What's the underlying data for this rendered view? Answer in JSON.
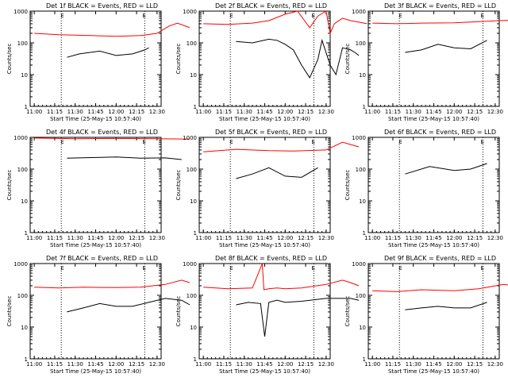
{
  "chart_data": [
    {
      "type": "line",
      "title": "Det 1f BLACK = Events, RED = LLD",
      "xlabel": "Start Time (25-May-15 10:57:40)",
      "ylabel": "Counts/sec",
      "yscale": "log",
      "ylim": [
        1,
        1000
      ],
      "x_ticks": [
        "11:00",
        "11:15",
        "11:30",
        "11:45",
        "12:00",
        "12:15",
        "12:30"
      ],
      "y_ticks": [
        "1",
        "10",
        "100",
        "1000"
      ],
      "markers": [
        "E",
        "E"
      ],
      "series": [
        {
          "color": "#000000",
          "x": [
            11.4,
            11.55,
            11.8,
            12.0,
            12.2,
            12.35,
            12.4
          ],
          "values": [
            35,
            45,
            55,
            40,
            45,
            60,
            70
          ]
        },
        {
          "color": "#ff0000",
          "x": [
            11.0,
            11.3,
            11.7,
            12.0,
            12.3,
            12.5,
            12.65,
            12.75,
            12.9
          ],
          "values": [
            200,
            180,
            170,
            160,
            170,
            200,
            340,
            420,
            300
          ]
        }
      ]
    },
    {
      "type": "line",
      "title": "Det 2f BLACK = Events, RED = LLD",
      "xlabel": "Start Time (25-May-15 10:57:40)",
      "ylabel": "Counts/sec",
      "yscale": "log",
      "ylim": [
        1,
        1000
      ],
      "x_ticks": [
        "11:00",
        "11:15",
        "11:30",
        "11:45",
        "12:00",
        "12:15",
        "12:30"
      ],
      "y_ticks": [
        "1",
        "10",
        "100",
        "1000"
      ],
      "markers": [
        "E",
        "E"
      ],
      "series": [
        {
          "color": "#000000",
          "x": [
            11.4,
            11.6,
            11.8,
            11.9,
            12.0,
            12.1,
            12.2,
            12.3,
            12.4,
            12.45,
            12.55,
            12.62,
            12.7,
            12.8,
            12.85,
            12.9
          ],
          "values": [
            110,
            100,
            130,
            120,
            90,
            60,
            20,
            8,
            30,
            120,
            20,
            10,
            70,
            60,
            50,
            40
          ]
        },
        {
          "color": "#ff0000",
          "x": [
            11.0,
            11.3,
            11.6,
            11.8,
            12.0,
            12.15,
            12.3,
            12.4,
            12.5,
            12.55,
            12.6,
            12.7,
            12.8,
            12.9,
            13.0
          ],
          "values": [
            400,
            380,
            420,
            500,
            800,
            1000,
            300,
            700,
            1000,
            200,
            400,
            600,
            500,
            450,
            400
          ]
        }
      ]
    },
    {
      "type": "line",
      "title": "Det 3f BLACK = Events, RED = LLD",
      "xlabel": "Start Time (25-May-15 10:57:40)",
      "ylabel": "Counts/sec",
      "yscale": "log",
      "ylim": [
        1,
        1000
      ],
      "x_ticks": [
        "11:00",
        "11:15",
        "11:30",
        "11:45",
        "12:00",
        "12:15",
        "12:30"
      ],
      "y_ticks": [
        "1",
        "10",
        "100",
        "1000"
      ],
      "markers": [
        "E",
        "E"
      ],
      "series": [
        {
          "color": "#000000",
          "x": [
            11.4,
            11.6,
            11.8,
            12.0,
            12.2,
            12.4
          ],
          "values": [
            50,
            60,
            90,
            70,
            65,
            120
          ]
        },
        {
          "color": "#ff0000",
          "x": [
            11.0,
            11.3,
            11.6,
            12.0,
            12.4,
            12.7,
            12.9
          ],
          "values": [
            420,
            400,
            420,
            430,
            480,
            520,
            400
          ]
        }
      ]
    },
    {
      "type": "line",
      "title": "Det 4f BLACK = Events, RED = LLD",
      "xlabel": "Start Time (25-May-15 10:57:40)",
      "ylabel": "Counts/sec",
      "yscale": "log",
      "ylim": [
        1,
        1000
      ],
      "x_ticks": [
        "11:00",
        "11:15",
        "11:30",
        "11:45",
        "12:00",
        "12:15",
        "12:30"
      ],
      "y_ticks": [
        "1",
        "10",
        "100",
        "1000"
      ],
      "markers": [
        "E",
        "E"
      ],
      "series": [
        {
          "color": "#000000",
          "x": [
            11.4,
            11.7,
            12.0,
            12.3,
            12.6,
            12.8
          ],
          "values": [
            220,
            230,
            240,
            220,
            225,
            200
          ]
        },
        {
          "color": "#ff0000",
          "x": [
            11.0,
            11.5,
            12.0,
            12.5,
            12.9
          ],
          "values": [
            950,
            900,
            920,
            900,
            880
          ]
        }
      ]
    },
    {
      "type": "line",
      "title": "Det 5f BLACK = Events, RED = LLD",
      "xlabel": "Start Time (25-May-15 10:57:40)",
      "ylabel": "Counts/sec",
      "yscale": "log",
      "ylim": [
        1,
        1000
      ],
      "x_ticks": [
        "11:00",
        "11:15",
        "11:30",
        "11:45",
        "12:00",
        "12:15",
        "12:30"
      ],
      "y_ticks": [
        "1",
        "10",
        "100",
        "1000"
      ],
      "markers": [
        "E",
        "E"
      ],
      "series": [
        {
          "color": "#000000",
          "x": [
            11.4,
            11.6,
            11.8,
            12.0,
            12.2,
            12.4
          ],
          "values": [
            50,
            70,
            110,
            60,
            55,
            110
          ]
        },
        {
          "color": "#ff0000",
          "x": [
            11.0,
            11.4,
            11.8,
            12.1,
            12.5,
            12.7,
            12.9
          ],
          "values": [
            350,
            420,
            380,
            370,
            400,
            700,
            500
          ]
        }
      ]
    },
    {
      "type": "line",
      "title": "Det 6f BLACK = Events, RED = LLD",
      "xlabel": "Start Time (25-May-15 10:57:40)",
      "ylabel": "Counts/sec",
      "yscale": "log",
      "ylim": [
        1,
        1000
      ],
      "x_ticks": [
        "11:00",
        "11:15",
        "11:30",
        "11:45",
        "12:00",
        "12:15",
        "12:30"
      ],
      "y_ticks": [
        "1",
        "10",
        "100",
        "1000"
      ],
      "markers": [
        "E",
        "E"
      ],
      "series": [
        {
          "color": "#000000",
          "x": [
            11.4,
            11.7,
            12.0,
            12.2,
            12.4
          ],
          "values": [
            70,
            120,
            90,
            100,
            150
          ]
        }
      ]
    },
    {
      "type": "line",
      "title": "Det 7f BLACK = Events, RED = LLD",
      "xlabel": "Start Time (25-May-15 10:57:40)",
      "ylabel": "Counts/sec",
      "yscale": "log",
      "ylim": [
        1,
        1000
      ],
      "x_ticks": [
        "11:00",
        "11:15",
        "11:30",
        "11:45",
        "12:00",
        "12:15",
        "12:30"
      ],
      "y_ticks": [
        "1",
        "10",
        "100",
        "1000"
      ],
      "markers": [
        "E",
        "E"
      ],
      "series": [
        {
          "color": "#000000",
          "x": [
            11.4,
            11.6,
            11.8,
            12.0,
            12.2,
            12.4,
            12.6,
            12.8,
            12.9
          ],
          "values": [
            30,
            40,
            55,
            45,
            45,
            60,
            80,
            70,
            50
          ]
        },
        {
          "color": "#ff0000",
          "x": [
            11.0,
            11.3,
            11.6,
            12.0,
            12.3,
            12.6,
            12.8,
            12.9
          ],
          "values": [
            180,
            170,
            180,
            175,
            180,
            220,
            300,
            250
          ]
        }
      ]
    },
    {
      "type": "line",
      "title": "Det 8f BLACK = Events, RED = LLD",
      "xlabel": "Start Time (25-May-15 10:57:40)",
      "ylabel": "Counts/sec",
      "yscale": "log",
      "ylim": [
        1,
        1000
      ],
      "x_ticks": [
        "11:00",
        "11:15",
        "11:30",
        "11:45",
        "12:00",
        "12:15",
        "12:30"
      ],
      "y_ticks": [
        "1",
        "10",
        "100",
        "1000"
      ],
      "markers": [
        "E",
        "E"
      ],
      "series": [
        {
          "color": "#000000",
          "x": [
            11.4,
            11.55,
            11.7,
            11.75,
            11.8,
            11.9,
            12.0,
            12.2,
            12.5,
            12.8,
            12.9
          ],
          "values": [
            50,
            60,
            55,
            5,
            60,
            70,
            60,
            65,
            80,
            80,
            70
          ]
        },
        {
          "color": "#ff0000",
          "x": [
            11.0,
            11.3,
            11.6,
            11.72,
            11.74,
            11.8,
            11.9,
            12.0,
            12.2,
            12.5,
            12.7,
            12.8,
            12.9
          ],
          "values": [
            180,
            160,
            170,
            1000,
            150,
            160,
            170,
            160,
            170,
            220,
            300,
            250,
            200
          ]
        }
      ]
    },
    {
      "type": "line",
      "title": "Det 9f BLACK = Events, RED = LLD",
      "xlabel": "Start Time (25-May-15 10:57:40)",
      "ylabel": "Counts/sec",
      "yscale": "log",
      "ylim": [
        1,
        1000
      ],
      "x_ticks": [
        "11:00",
        "11:15",
        "11:30",
        "11:45",
        "12:00",
        "12:15",
        "12:30"
      ],
      "y_ticks": [
        "1",
        "10",
        "100",
        "1000"
      ],
      "markers": [
        "E",
        "E"
      ],
      "series": [
        {
          "color": "#000000",
          "x": [
            11.4,
            11.6,
            11.8,
            12.0,
            12.2,
            12.4
          ],
          "values": [
            35,
            40,
            45,
            40,
            40,
            60
          ]
        },
        {
          "color": "#ff0000",
          "x": [
            11.0,
            11.3,
            11.6,
            12.0,
            12.3,
            12.6,
            12.9
          ],
          "values": [
            140,
            130,
            150,
            140,
            160,
            220,
            180
          ]
        }
      ]
    }
  ]
}
